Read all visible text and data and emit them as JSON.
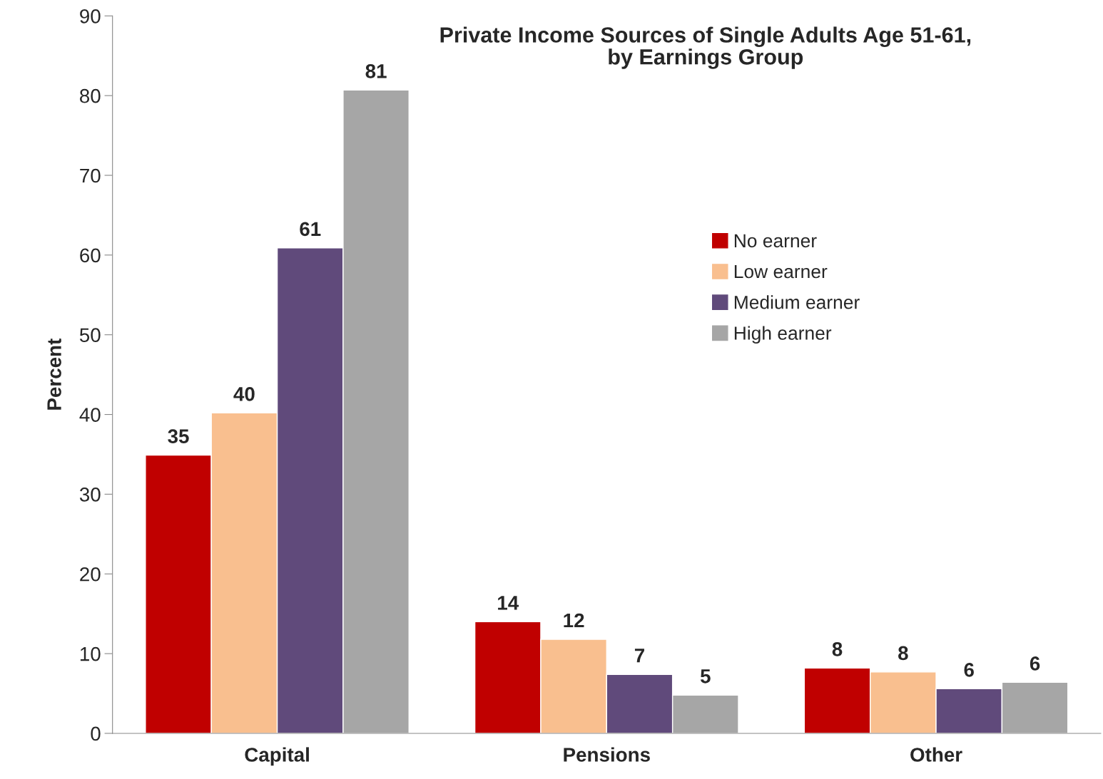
{
  "chart_data": {
    "type": "bar",
    "title": "Private Income Sources of Single Adults Age 51-61,\nby Earnings Group",
    "ylabel": "Percent",
    "categories": [
      "Capital",
      "Pensions",
      "Other"
    ],
    "series": [
      {
        "name": "No earner",
        "color": "#c00000",
        "values": [
          34.9,
          14.0,
          8.2
        ],
        "value_labels": [
          "35",
          "14",
          "8"
        ]
      },
      {
        "name": "Low earner",
        "color": "#f9bf8f",
        "values": [
          40.2,
          11.8,
          7.7
        ],
        "value_labels": [
          "40",
          "12",
          "8"
        ]
      },
      {
        "name": "Medium earner",
        "color": "#604a7b",
        "values": [
          60.9,
          7.4,
          5.6
        ],
        "value_labels": [
          "61",
          "7",
          "6"
        ]
      },
      {
        "name": "High earner",
        "color": "#a6a6a6",
        "values": [
          80.7,
          4.8,
          6.4
        ],
        "value_labels": [
          "81",
          "5",
          "6"
        ]
      }
    ],
    "ylim": [
      0,
      90
    ],
    "yticks": [
      0,
      10,
      20,
      30,
      40,
      50,
      60,
      70,
      80,
      90
    ],
    "grid": false,
    "legend": "right"
  }
}
